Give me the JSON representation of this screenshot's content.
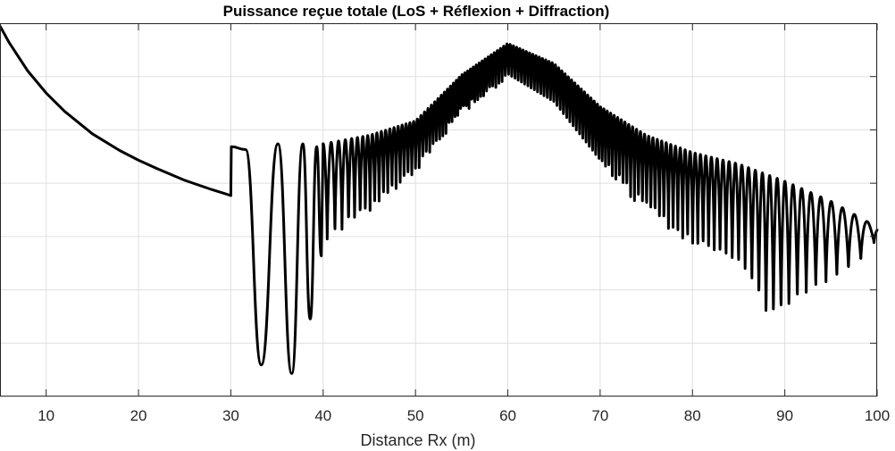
{
  "chart_data": {
    "type": "line",
    "title": "Puissance reçue totale (LoS + Réflexion + Diffraction)",
    "xlabel": "Distance Rx (m)",
    "ylabel": "",
    "xlim": [
      5,
      100
    ],
    "ylim": [
      -150,
      -20
    ],
    "x_ticks": [
      10,
      20,
      30,
      40,
      50,
      60,
      70,
      80,
      90,
      100
    ],
    "y_tick_count": 7,
    "grid": true,
    "legend": "none",
    "line_color": "#000000",
    "grid_color": "#dfdfdf",
    "series": [
      {
        "segments": [
          {
            "kind": "smooth",
            "points": [
              [
                5,
                -21
              ],
              [
                6,
                -26.8
              ],
              [
                8,
                -36.6
              ],
              [
                10,
                -44.3
              ],
              [
                12,
                -50.7
              ],
              [
                15,
                -58.5
              ],
              [
                18,
                -64.4
              ],
              [
                20,
                -67.7
              ],
              [
                22,
                -70.6
              ],
              [
                25,
                -74.7
              ],
              [
                28,
                -78.0
              ],
              [
                30,
                -80.0
              ]
            ]
          },
          {
            "kind": "interference",
            "x_start": 30,
            "x_end": 40,
            "upper": [
              [
                30,
                -63
              ],
              [
                40,
                -62
              ]
            ],
            "points": [
              [
                30.05,
                -63
              ],
              [
                31.6,
                -64
              ],
              [
                33.3,
                -139
              ],
              [
                35.1,
                -62
              ],
              [
                36.6,
                -142
              ],
              [
                37.8,
                -62
              ],
              [
                38.6,
                -123
              ],
              [
                39.3,
                -63
              ],
              [
                39.8,
                -101
              ]
            ]
          },
          {
            "kind": "interference",
            "x_start": 40,
            "x_end": 100,
            "upper": [
              [
                40,
                -62
              ],
              [
                45,
                -59
              ],
              [
                50,
                -54
              ],
              [
                55,
                -38
              ],
              [
                60,
                -27
              ],
              [
                65,
                -34
              ],
              [
                70,
                -49
              ],
              [
                75,
                -59
              ],
              [
                80,
                -65
              ],
              [
                85,
                -69
              ],
              [
                90,
                -75
              ],
              [
                95,
                -82
              ],
              [
                100,
                -91
              ]
            ],
            "lower": [
              [
                40,
                -97
              ],
              [
                45,
                -86
              ],
              [
                50,
                -72
              ],
              [
                55,
                -52
              ],
              [
                60,
                -39
              ],
              [
                65,
                -49
              ],
              [
                70,
                -70
              ],
              [
                75,
                -86
              ],
              [
                80,
                -98
              ],
              [
                84,
                -103
              ],
              [
                86,
                -108
              ],
              [
                88,
                -124
              ],
              [
                90,
                -122
              ],
              [
                92,
                -115
              ],
              [
                95,
                -110
              ],
              [
                98,
                -104
              ],
              [
                100,
                -95
              ]
            ],
            "fringe_period_m": [
              [
                40,
                0.9
              ],
              [
                45,
                0.5
              ],
              [
                55,
                0.3
              ],
              [
                60,
                0.35
              ],
              [
                70,
                0.35
              ],
              [
                80,
                0.55
              ],
              [
                90,
                0.85
              ],
              [
                100,
                1.5
              ]
            ]
          }
        ]
      }
    ]
  }
}
